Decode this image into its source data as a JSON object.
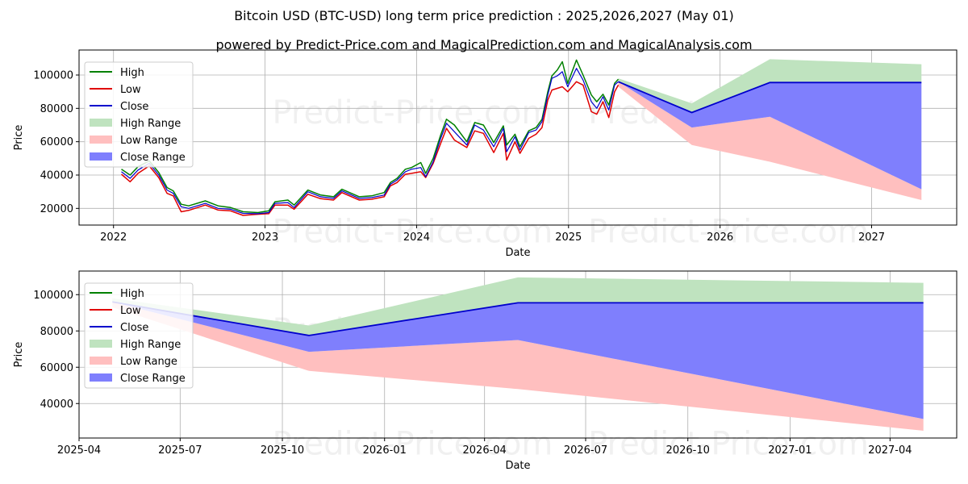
{
  "title": "Bitcoin USD (BTC-USD) long term price prediction : 2025,2026,2027 (May 01)",
  "subtitle": "powered by Predict-Price.com and MagicalPrediction.com and MagicalAnalysis.com",
  "watermark": "Predict-Price.com",
  "colors": {
    "high": "#008000",
    "low": "#e00000",
    "close": "#0000cc",
    "high_range": "#bfe3bf",
    "low_range": "#ffbfbf",
    "close_range": "#7f7ffd"
  },
  "legend": {
    "high": "High",
    "low": "Low",
    "close": "Close",
    "high_range": "High Range",
    "low_range": "Low Range",
    "close_range": "Close Range"
  },
  "chart_data": [
    {
      "type": "line",
      "xlabel": "Date",
      "ylabel": "Price",
      "xlim": [
        "2021-10-10",
        "2027-07-25"
      ],
      "ylim": [
        10000,
        115000
      ],
      "x_ticks": [
        "2022",
        "2023",
        "2024",
        "2025",
        "2026",
        "2027"
      ],
      "y_ticks": [
        20000,
        40000,
        60000,
        80000,
        100000
      ],
      "grid": true,
      "legend_position": "top-left",
      "history": {
        "x": [
          "2022-01-20",
          "2022-02-10",
          "2022-03-01",
          "2022-03-28",
          "2022-04-20",
          "2022-05-10",
          "2022-05-25",
          "2022-06-13",
          "2022-07-01",
          "2022-08-10",
          "2022-09-10",
          "2022-10-10",
          "2022-11-09",
          "2022-12-15",
          "2023-01-10",
          "2023-01-25",
          "2023-02-25",
          "2023-03-12",
          "2023-04-14",
          "2023-05-15",
          "2023-06-15",
          "2023-07-05",
          "2023-08-16",
          "2023-09-15",
          "2023-10-15",
          "2023-10-30",
          "2023-11-15",
          "2023-12-05",
          "2023-12-20",
          "2024-01-11",
          "2024-01-23",
          "2024-02-10",
          "2024-02-28",
          "2024-03-13",
          "2024-04-01",
          "2024-05-01",
          "2024-05-20",
          "2024-06-10",
          "2024-07-05",
          "2024-07-28",
          "2024-08-05",
          "2024-08-25",
          "2024-09-06",
          "2024-09-27",
          "2024-10-15",
          "2024-10-29",
          "2024-11-12",
          "2024-11-22",
          "2024-12-05",
          "2024-12-17",
          "2024-12-30",
          "2025-01-20",
          "2025-02-05",
          "2025-02-25",
          "2025-03-10",
          "2025-03-25",
          "2025-04-08",
          "2025-04-22",
          "2025-05-01"
        ],
        "close": [
          42000,
          38000,
          43000,
          47000,
          40000,
          31000,
          29000,
          21000,
          20000,
          23000,
          20000,
          19500,
          17000,
          16800,
          17500,
          23000,
          23500,
          20500,
          30000,
          27000,
          26000,
          30500,
          26000,
          26500,
          28000,
          34500,
          37000,
          42000,
          43500,
          44500,
          39000,
          48000,
          62000,
          71000,
          66000,
          58000,
          70000,
          67000,
          57000,
          68000,
          54000,
          63000,
          55000,
          65500,
          67000,
          72000,
          88000,
          98000,
          99500,
          102000,
          93000,
          104000,
          97000,
          84000,
          80000,
          87000,
          79000,
          94000,
          96000
        ],
        "high": [
          43500,
          40000,
          45000,
          48500,
          41500,
          32500,
          30500,
          22500,
          21500,
          24500,
          21500,
          20500,
          18000,
          17500,
          18500,
          24000,
          25000,
          22000,
          31000,
          28000,
          27000,
          31500,
          27000,
          27500,
          29500,
          35500,
          38000,
          43500,
          44500,
          47500,
          41000,
          50000,
          64000,
          73500,
          70000,
          60000,
          71500,
          70000,
          59500,
          69500,
          58000,
          64500,
          57000,
          66500,
          68500,
          73500,
          90000,
          99500,
          103000,
          108000,
          95000,
          109000,
          100000,
          88000,
          84000,
          88500,
          82000,
          95000,
          97500
        ],
        "low": [
          40500,
          36000,
          41000,
          45500,
          38500,
          29000,
          27500,
          18000,
          18800,
          22000,
          19000,
          18500,
          15800,
          16500,
          16800,
          22000,
          22000,
          19500,
          28500,
          25800,
          25000,
          29500,
          25000,
          25500,
          27000,
          33500,
          35500,
          40500,
          41000,
          42000,
          38500,
          47000,
          59000,
          68000,
          61000,
          56500,
          66500,
          65000,
          53500,
          65000,
          49000,
          60000,
          53000,
          62000,
          64500,
          68500,
          85000,
          91000,
          92000,
          93000,
          90000,
          96000,
          94000,
          78000,
          76500,
          84000,
          74500,
          90000,
          94000
        ]
      },
      "forecast": {
        "x": [
          "2025-05-01",
          "2025-10-25",
          "2026-05-01",
          "2027-05-01"
        ],
        "high_range_upper": [
          98000,
          83000,
          109500,
          106500
        ],
        "close": [
          96000,
          77500,
          95500,
          95500
        ],
        "close_range_lower": [
          96000,
          68500,
          75000,
          31500
        ],
        "low_range_lower": [
          93000,
          58000,
          48000,
          25000
        ]
      }
    },
    {
      "type": "line",
      "xlabel": "Date",
      "ylabel": "Price",
      "xlim": [
        "2025-04-01",
        "2027-05-31"
      ],
      "ylim": [
        21000,
        113000
      ],
      "x_ticks": [
        "2025-04",
        "2025-07",
        "2025-10",
        "2026-01",
        "2026-04",
        "2026-07",
        "2026-10",
        "2027-01",
        "2027-04"
      ],
      "y_ticks": [
        40000,
        60000,
        80000,
        100000
      ],
      "grid": true,
      "legend_position": "top-left",
      "forecast": {
        "x": [
          "2025-05-01",
          "2025-10-25",
          "2026-05-01",
          "2027-05-01"
        ],
        "high_range_upper": [
          98000,
          83000,
          109500,
          106500
        ],
        "close": [
          96000,
          77500,
          95500,
          95500
        ],
        "close_range_lower": [
          96000,
          68500,
          75000,
          31500
        ],
        "low_range_lower": [
          93000,
          58000,
          48000,
          25000
        ]
      }
    }
  ]
}
